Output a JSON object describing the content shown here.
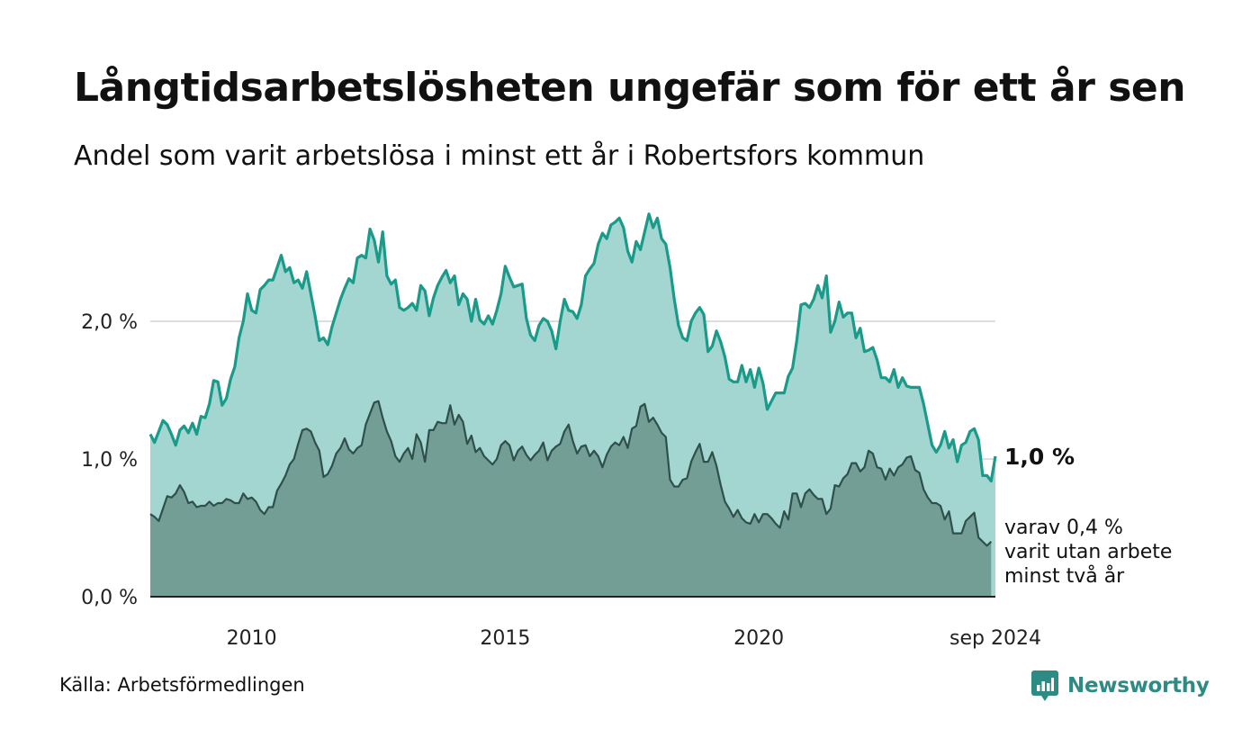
{
  "title": "Långtidsarbetslösheten ungefär som för ett år sen",
  "subtitle": "Andel som varit arbetslösa i minst ett år i Robertsfors kommun",
  "source": "Källa: Arbetsförmedlingen",
  "brand": "Newsworthy",
  "colors": {
    "total_line": "#1a9a89",
    "total_fill": "#a3d6d0",
    "long_line": "#2f4f4a",
    "long_fill": "#729e96",
    "grid": "#dddddd",
    "brand": "#2e8b84"
  },
  "annotations": {
    "end_value": "1,0 %",
    "note_lines": [
      "varav 0,4 %",
      "varit utan arbete",
      "minst två år"
    ]
  },
  "chart_data": {
    "type": "area",
    "x_start": "2008-01",
    "x_end": "2024-09",
    "frequency": "monthly",
    "ylim": [
      0,
      3
    ],
    "yticks": [
      {
        "value": 0,
        "label": "0,0 %"
      },
      {
        "value": 1,
        "label": "1,0 %"
      },
      {
        "value": 2,
        "label": "2,0 %"
      }
    ],
    "xticks": [
      {
        "date": "2010-01",
        "label": "2010"
      },
      {
        "date": "2015-01",
        "label": "2015"
      },
      {
        "date": "2020-01",
        "label": "2020"
      },
      {
        "date": "2024-09",
        "label": "sep 2024"
      }
    ],
    "grid": true,
    "series": [
      {
        "key": "total",
        "values": [
          1.18,
          1.12,
          1.2,
          1.28,
          1.25,
          1.18,
          1.1,
          1.21,
          1.24,
          1.19,
          1.26,
          1.18,
          1.31,
          1.3,
          1.4,
          1.57,
          1.56,
          1.39,
          1.44,
          1.58,
          1.67,
          1.88,
          2.0,
          2.2,
          2.08,
          2.06,
          2.23,
          2.26,
          2.3,
          2.3,
          2.39,
          2.48,
          2.36,
          2.39,
          2.28,
          2.3,
          2.24,
          2.36,
          2.2,
          2.04,
          1.86,
          1.88,
          1.83,
          1.96,
          2.06,
          2.16,
          2.24,
          2.31,
          2.28,
          2.46,
          2.48,
          2.46,
          2.67,
          2.59,
          2.43,
          2.65,
          2.33,
          2.27,
          2.3,
          2.1,
          2.08,
          2.1,
          2.13,
          2.08,
          2.26,
          2.22,
          2.04,
          2.17,
          2.26,
          2.32,
          2.37,
          2.28,
          2.33,
          2.12,
          2.2,
          2.16,
          2.0,
          2.16,
          2.01,
          1.98,
          2.04,
          1.98,
          2.08,
          2.2,
          2.4,
          2.32,
          2.25,
          2.26,
          2.27,
          2.02,
          1.9,
          1.86,
          1.97,
          2.02,
          2.0,
          1.93,
          1.8,
          2.0,
          2.16,
          2.08,
          2.07,
          2.02,
          2.12,
          2.33,
          2.38,
          2.42,
          2.56,
          2.64,
          2.6,
          2.7,
          2.72,
          2.75,
          2.68,
          2.51,
          2.43,
          2.58,
          2.52,
          2.65,
          2.78,
          2.68,
          2.75,
          2.6,
          2.56,
          2.39,
          2.16,
          1.97,
          1.88,
          1.86,
          2.0,
          2.06,
          2.1,
          2.05,
          1.78,
          1.82,
          1.93,
          1.85,
          1.74,
          1.58,
          1.56,
          1.56,
          1.68,
          1.56,
          1.65,
          1.52,
          1.66,
          1.55,
          1.36,
          1.42,
          1.48,
          1.48,
          1.48,
          1.6,
          1.66,
          1.86,
          2.12,
          2.13,
          2.1,
          2.16,
          2.26,
          2.17,
          2.33,
          1.92,
          2.0,
          2.14,
          2.03,
          2.06,
          2.06,
          1.88,
          1.95,
          1.78,
          1.79,
          1.81,
          1.72,
          1.59,
          1.59,
          1.56,
          1.65,
          1.52,
          1.59,
          1.53,
          1.52,
          1.52,
          1.52,
          1.4,
          1.25,
          1.1,
          1.05,
          1.1,
          1.2,
          1.08,
          1.14,
          0.98,
          1.1,
          1.12,
          1.2,
          1.22,
          1.14,
          0.88,
          0.88,
          0.84,
          1.02
        ]
      },
      {
        "key": "long",
        "values": [
          0.6,
          0.58,
          0.55,
          0.64,
          0.73,
          0.72,
          0.75,
          0.81,
          0.76,
          0.68,
          0.69,
          0.65,
          0.66,
          0.66,
          0.69,
          0.66,
          0.68,
          0.68,
          0.71,
          0.7,
          0.68,
          0.68,
          0.75,
          0.71,
          0.72,
          0.69,
          0.63,
          0.6,
          0.65,
          0.65,
          0.77,
          0.82,
          0.88,
          0.96,
          1.0,
          1.11,
          1.21,
          1.22,
          1.2,
          1.12,
          1.06,
          0.87,
          0.89,
          0.95,
          1.04,
          1.08,
          1.15,
          1.07,
          1.04,
          1.08,
          1.1,
          1.25,
          1.33,
          1.41,
          1.42,
          1.3,
          1.2,
          1.13,
          1.02,
          0.98,
          1.04,
          1.08,
          1.0,
          1.18,
          1.12,
          0.98,
          1.21,
          1.21,
          1.27,
          1.26,
          1.26,
          1.39,
          1.25,
          1.32,
          1.27,
          1.11,
          1.17,
          1.05,
          1.08,
          1.02,
          0.99,
          0.96,
          1.0,
          1.1,
          1.13,
          1.1,
          0.99,
          1.06,
          1.09,
          1.03,
          0.99,
          1.03,
          1.06,
          1.12,
          0.99,
          1.06,
          1.09,
          1.11,
          1.2,
          1.25,
          1.13,
          1.04,
          1.09,
          1.1,
          1.02,
          1.06,
          1.02,
          0.94,
          1.03,
          1.09,
          1.12,
          1.1,
          1.16,
          1.08,
          1.22,
          1.24,
          1.38,
          1.4,
          1.27,
          1.3,
          1.25,
          1.19,
          1.16,
          0.85,
          0.8,
          0.8,
          0.85,
          0.86,
          0.98,
          1.05,
          1.11,
          0.98,
          0.98,
          1.05,
          0.95,
          0.81,
          0.69,
          0.64,
          0.58,
          0.63,
          0.57,
          0.54,
          0.53,
          0.6,
          0.54,
          0.6,
          0.6,
          0.57,
          0.53,
          0.5,
          0.62,
          0.56,
          0.75,
          0.75,
          0.65,
          0.75,
          0.78,
          0.74,
          0.71,
          0.71,
          0.6,
          0.64,
          0.81,
          0.8,
          0.86,
          0.89,
          0.97,
          0.97,
          0.91,
          0.94,
          1.06,
          1.04,
          0.94,
          0.93,
          0.85,
          0.93,
          0.88,
          0.94,
          0.96,
          1.01,
          1.02,
          0.92,
          0.9,
          0.78,
          0.72,
          0.68,
          0.68,
          0.66,
          0.56,
          0.62,
          0.46,
          0.46,
          0.46,
          0.55,
          0.58,
          0.61,
          0.43,
          0.4,
          0.37,
          0.4
        ]
      }
    ]
  }
}
